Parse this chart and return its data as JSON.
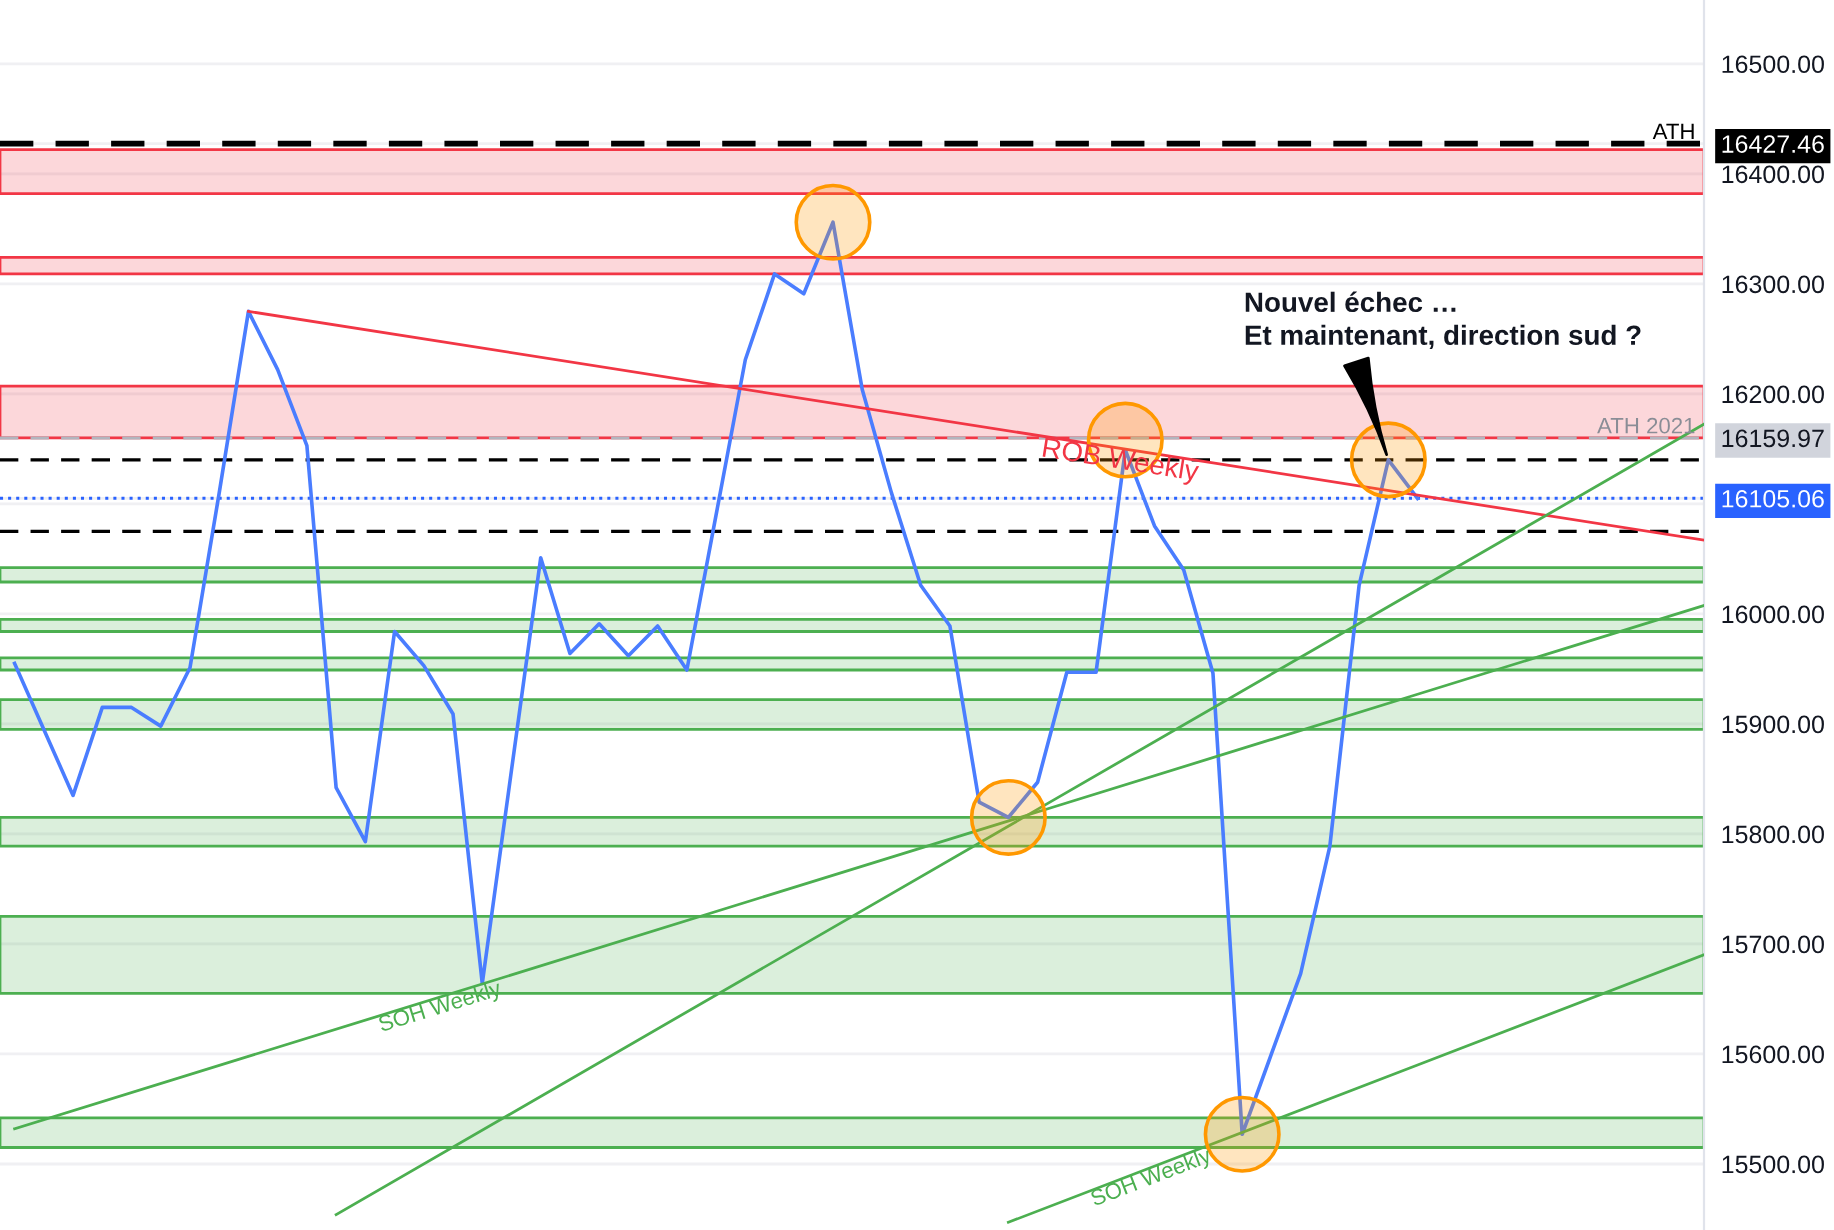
{
  "chart_data": {
    "type": "line",
    "categories": [
      null,
      null,
      null,
      null,
      null,
      null,
      null,
      null,
      null,
      null,
      null,
      null,
      null,
      null,
      null,
      null,
      null,
      null,
      null,
      null,
      null,
      null,
      null,
      null,
      null,
      null,
      null,
      null,
      null,
      null,
      null,
      null,
      null,
      null,
      null,
      null,
      null,
      null,
      null,
      null,
      null,
      null,
      null,
      null,
      null,
      null,
      null,
      null,
      null
    ],
    "series": [
      {
        "color": "#4a7dff",
        "values": [
          15955,
          15895,
          15835,
          15915,
          15915,
          15898,
          15951,
          16110,
          16275,
          16222,
          16153,
          15842,
          15793,
          15984,
          15953,
          15909,
          15664,
          15858,
          16051,
          15964,
          15991,
          15962,
          15989,
          15949,
          16090,
          16231,
          16309,
          16291,
          16356,
          16204,
          16110,
          16026,
          15989,
          15829,
          15815,
          15847,
          15947,
          15947,
          16149,
          16080,
          16040,
          15946,
          15527,
          15600,
          15673,
          15789,
          16026,
          16140,
          16105
        ]
      },
      {
        "type": "line",
        "name": "ROB Weekly",
        "color": "#f23645",
        "values": [
          null,
          null,
          null,
          null,
          null,
          null,
          null,
          null,
          16275,
          null,
          null,
          null,
          null,
          null,
          null,
          null,
          null,
          null,
          null,
          null,
          null,
          null,
          null,
          null,
          null,
          null,
          null,
          null,
          null,
          null,
          null,
          null,
          null,
          null,
          null,
          null,
          null,
          null,
          null,
          null,
          null,
          null,
          null,
          null,
          null,
          null,
          null,
          null,
          16108
        ]
      },
      {
        "type": "line",
        "name": "SOH Weekly",
        "color": "#4caf50",
        "values": [
          15532,
          null,
          null,
          null,
          null,
          null,
          null,
          null,
          null,
          null,
          null,
          null,
          null,
          null,
          null,
          null,
          null,
          null,
          null,
          null,
          null,
          null,
          null,
          null,
          null,
          null,
          null,
          null,
          null,
          null,
          null,
          null,
          null,
          null,
          null,
          null,
          null,
          null,
          null,
          null,
          null,
          null,
          null,
          null,
          null,
          null,
          null,
          null,
          15927
        ]
      },
      {
        "type": "line",
        "color": "#4caf50",
        "values": [
          null,
          null,
          null,
          null,
          null,
          null,
          null,
          null,
          null,
          null,
          null,
          15454,
          null,
          null,
          null,
          null,
          null,
          null,
          null,
          null,
          null,
          null,
          null,
          null,
          null,
          null,
          null,
          null,
          null,
          null,
          null,
          null,
          null,
          null,
          null,
          null,
          null,
          null,
          null,
          null,
          null,
          null,
          null,
          null,
          null,
          null,
          null,
          null,
          16022
        ]
      },
      {
        "type": "line",
        "name": "SOH Weekly",
        "color": "#4caf50",
        "values": [
          null,
          null,
          null,
          null,
          null,
          null,
          null,
          null,
          null,
          null,
          null,
          null,
          null,
          null,
          null,
          null,
          null,
          null,
          null,
          null,
          null,
          null,
          null,
          null,
          null,
          null,
          null,
          null,
          null,
          null,
          null,
          null,
          null,
          null,
          15447,
          null,
          null,
          null,
          null,
          null,
          null,
          null,
          null,
          null,
          null,
          null,
          null,
          null,
          15590
        ]
      },
      {
        "type": "scatter",
        "color": "#ff9800",
        "values": [
          null,
          null,
          null,
          null,
          null,
          null,
          null,
          null,
          null,
          null,
          null,
          null,
          null,
          null,
          null,
          null,
          null,
          null,
          null,
          null,
          null,
          null,
          null,
          null,
          null,
          null,
          null,
          null,
          16356,
          null,
          null,
          null,
          null,
          null,
          15815,
          null,
          null,
          null,
          16158,
          null,
          null,
          null,
          15527,
          null,
          null,
          null,
          null,
          16140,
          null
        ]
      }
    ],
    "ylim": [
      15440,
      16558
    ],
    "yticks": [
      {
        "value": 15500,
        "label": "15500.00"
      },
      {
        "value": 15600,
        "label": "15600.00"
      },
      {
        "value": 15700,
        "label": "15700.00"
      },
      {
        "value": 15800,
        "label": "15800.00"
      },
      {
        "value": 15900,
        "label": "15900.00"
      },
      {
        "value": 16000,
        "label": "16000.00"
      },
      {
        "value": 16100,
        "label": null
      },
      {
        "value": 16200,
        "label": "16200.00"
      },
      {
        "value": 16300,
        "label": "16300.00"
      },
      {
        "value": 16400,
        "label": "16400.00"
      },
      {
        "value": 16500,
        "label": "16500.00"
      },
      16427.46,
      16159.97,
      16105.06
    ],
    "ref_lines": [
      {
        "axis": "y",
        "value": 16427.46,
        "label": "ATH",
        "color": "#000000",
        "line_style": "dashed"
      },
      {
        "axis": "y",
        "value": 16159.97,
        "label": "ATH 2021",
        "color": "#b2b5be",
        "line_style": "dashed"
      },
      {
        "axis": "y",
        "value": 16105.06,
        "color": "#2962ff",
        "line_style": "dotted"
      },
      {
        "axis": "y",
        "value": 16140,
        "color": "#000000",
        "line_style": "dashed"
      },
      {
        "axis": "y",
        "value": 16075,
        "color": "#000000",
        "line_style": "dashed"
      }
    ],
    "bands": [
      {
        "axis": "y",
        "from": 16382,
        "to": 16422,
        "color": "#f23645"
      },
      {
        "axis": "y",
        "from": 16309,
        "to": 16324,
        "color": "#f23645"
      },
      {
        "axis": "y",
        "from": 16160,
        "to": 16207,
        "color": "#f23645"
      },
      {
        "axis": "y",
        "from": 16029,
        "to": 16042,
        "color": "#4caf50"
      },
      {
        "axis": "y",
        "from": 15984,
        "to": 15995,
        "color": "#4caf50"
      },
      {
        "axis": "y",
        "from": 15949,
        "to": 15960,
        "color": "#4caf50"
      },
      {
        "axis": "y",
        "from": 15895,
        "to": 15922,
        "color": "#4caf50"
      },
      {
        "axis": "y",
        "from": 15789,
        "to": 15815,
        "color": "#4caf50"
      },
      {
        "axis": "y",
        "from": 15655,
        "to": 15725,
        "color": "#4caf50"
      },
      {
        "axis": "y",
        "from": 15515,
        "to": 15542,
        "color": "#4caf50"
      }
    ],
    "annotations": [
      "Nouvel échec …\nEt maintenant, direction sud ?"
    ],
    "grid": "y",
    "tick_labels": "y",
    "legend": false
  }
}
